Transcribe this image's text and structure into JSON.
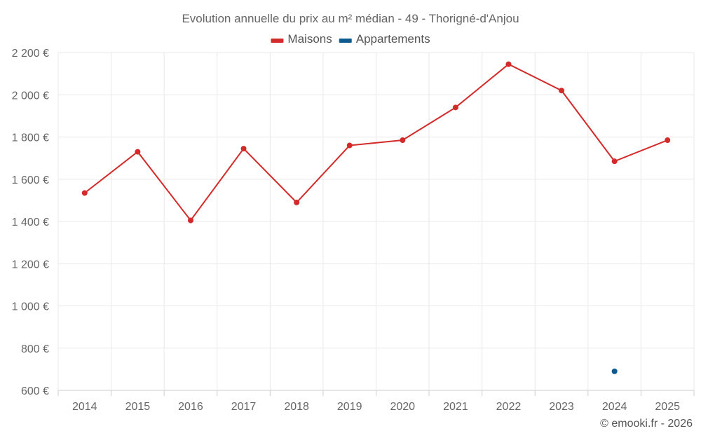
{
  "chart_data": {
    "type": "line",
    "title": "Evolution annuelle du prix au m² médian - 49 - Thorigné-d'Anjou",
    "categories": [
      "2014",
      "2015",
      "2016",
      "2017",
      "2018",
      "2019",
      "2020",
      "2021",
      "2022",
      "2023",
      "2024",
      "2025"
    ],
    "series": [
      {
        "name": "Maisons",
        "color": "#d42a2a",
        "values": [
          1535,
          1730,
          1405,
          1745,
          1490,
          1760,
          1785,
          1940,
          2145,
          2020,
          1685,
          1785
        ]
      },
      {
        "name": "Appartements",
        "color": "#0f5a8f",
        "values": [
          null,
          null,
          null,
          null,
          null,
          null,
          null,
          null,
          null,
          null,
          690,
          null
        ]
      }
    ],
    "ylim": [
      600,
      2200
    ],
    "yticks": [
      600,
      800,
      1000,
      1200,
      1400,
      1600,
      1800,
      2000,
      2200
    ],
    "ytick_labels": [
      "600 €",
      "800 €",
      "1 000 €",
      "1 200 €",
      "1 400 €",
      "1 600 €",
      "1 800 €",
      "2 000 €",
      "2 200 €"
    ],
    "xlabel": "",
    "ylabel": "",
    "grid": true,
    "legend": "top-center"
  },
  "credit": "© emooki.fr - 2026"
}
